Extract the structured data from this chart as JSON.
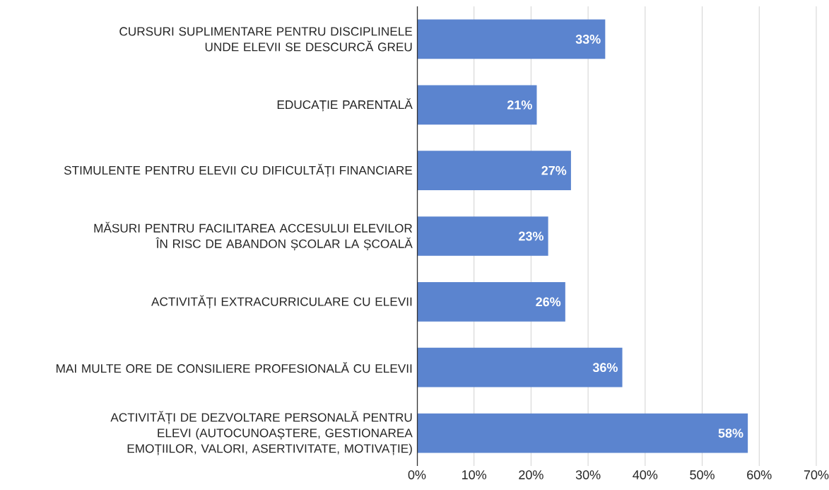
{
  "chart_data": {
    "type": "bar",
    "orientation": "horizontal",
    "categories": [
      "CURSURI SUPLIMENTARE PENTRU DISCIPLINELE UNDE ELEVII SE DESCURCĂ GREU",
      "EDUCAȚIE PARENTALĂ",
      "STIMULENTE PENTRU ELEVII CU DIFICULTĂȚI FINANCIARE",
      "MĂSURI PENTRU FACILITAREA ACCESULUI ELEVILOR ÎN RISC DE ABANDON ȘCOLAR LA ȘCOALĂ",
      "ACTIVITĂȚI EXTRACURRICULARE CU ELEVII",
      "MAI MULTE ORE DE CONSILIERE PROFESIONALĂ CU ELEVII",
      "ACTIVITĂȚI DE DEZVOLTARE PERSONALĂ PENTRU ELEVI (AUTOCUNOAȘTERE, GESTIONAREA EMOȚIILOR, VALORI, ASERTIVITATE, MOTIVAȚIE)"
    ],
    "values": [
      33,
      21,
      27,
      23,
      26,
      36,
      58
    ],
    "value_labels": [
      "33%",
      "21%",
      "27%",
      "23%",
      "26%",
      "36%",
      "58%"
    ],
    "color": "#5b84cf",
    "xlim": [
      0,
      70
    ],
    "xticks": [
      {
        "value": 0,
        "label": "0%"
      },
      {
        "value": 10,
        "label": "10%"
      },
      {
        "value": 20,
        "label": "20%"
      },
      {
        "value": 30,
        "label": "30%"
      },
      {
        "value": 40,
        "label": "40%"
      },
      {
        "value": 50,
        "label": "50%"
      },
      {
        "value": 60,
        "label": "60%"
      },
      {
        "value": 70,
        "label": "70%"
      }
    ],
    "grid": "x"
  }
}
